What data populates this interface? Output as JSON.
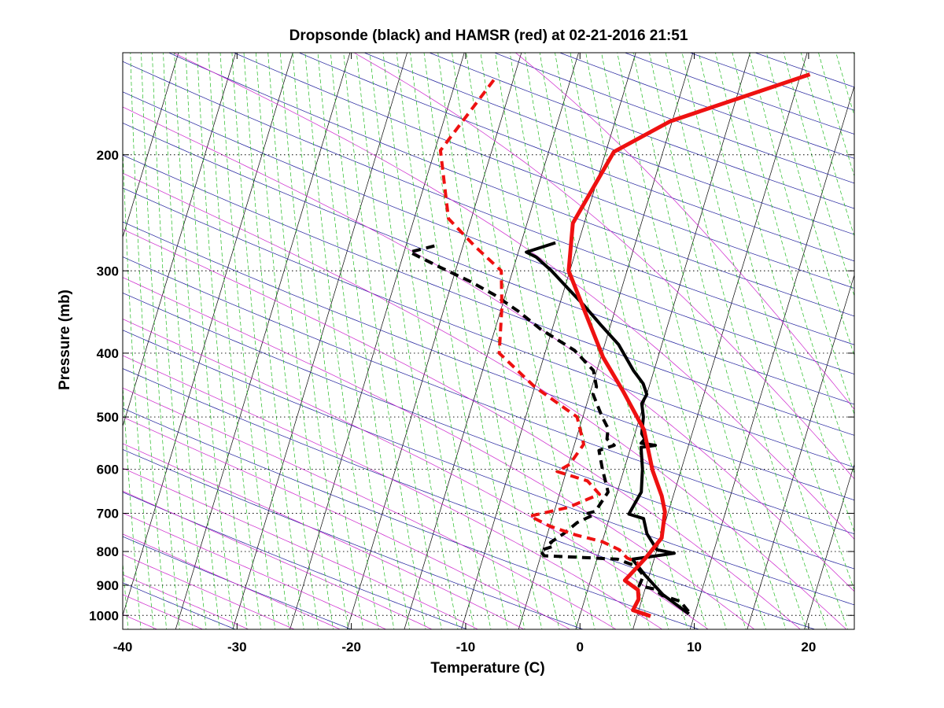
{
  "chart_data": {
    "type": "line",
    "subtype": "skew-t log-p diagram",
    "title": "Dropsonde (black) and HAMSR (red) at 02-21-2016 21:51",
    "xlabel": "Temperature (C)",
    "ylabel": "Pressure (mb)",
    "xlim": [
      -40,
      24
    ],
    "ylim": [
      1050,
      140
    ],
    "yscale": "log",
    "x_ticks": [
      "-40",
      "-30",
      "-20",
      "-10",
      "0",
      "10",
      "20"
    ],
    "y_ticks": [
      "200",
      "300",
      "400",
      "500",
      "600",
      "700",
      "800",
      "900",
      "1000"
    ],
    "grid": "dotted horizontal isobars",
    "background_lines": {
      "isotherms": "#000000",
      "dry_adiabats": "#1a1a9a",
      "moist_adiabats": "#cc22cc",
      "mixing_ratio": "#22bb22"
    },
    "colors": {
      "dropsonde": "#000000",
      "hamsr": "#ee1111"
    },
    "series": [
      {
        "color": "#000000",
        "dash": "solid",
        "width": 4,
        "x": [
          -12.0,
          -14.3,
          -13.3,
          -11.6,
          -9.8,
          -7.9,
          -5.9,
          -3.8,
          -1.8,
          -0.6,
          0.0,
          -0.2,
          0.3,
          0.6,
          1.0,
          0.8,
          2.1,
          0.9,
          1.6,
          2.1,
          1.6,
          3.0,
          3.7,
          5.0,
          6.6,
          3.1,
          4.6,
          6.7,
          9.5
        ],
        "p": [
          272,
          281,
          286,
          300,
          318,
          338,
          362,
          388,
          425,
          445,
          462,
          477,
          500,
          530,
          540,
          548,
          552,
          556,
          600,
          650,
          702,
          713,
          752,
          795,
          805,
          822,
          868,
          930,
          995
        ]
      },
      {
        "color": "#000000",
        "dash": "dashed",
        "width": 4,
        "x": [
          -22.5,
          -24.5,
          -21.5,
          -18.5,
          -16.0,
          -13.5,
          -11.0,
          -7.5,
          -5.3,
          -4.6,
          -4.7,
          -3.3,
          -2.5,
          -2.3,
          -1.5,
          -2.7,
          -1.9,
          -0.8,
          -1.4,
          -2.0,
          -1.5,
          -2.7,
          -3.6,
          -4.5,
          -4.1,
          -5.2,
          -4.7,
          -1.2,
          1.8,
          3.6,
          4.5,
          4.4,
          5.8,
          6.7,
          8.4,
          9.5
        ],
        "p": [
          275,
          281,
          296,
          311,
          326,
          345,
          368,
          396,
          425,
          450,
          462,
          500,
          520,
          540,
          552,
          562,
          600,
          650,
          695,
          700,
          704,
          723,
          752,
          775,
          785,
          797,
          812,
          817,
          822,
          842,
          870,
          902,
          912,
          933,
          952,
          990
        ]
      },
      {
        "color": "#ee1111",
        "dash": "solid",
        "width": 5,
        "x": [
          5.8,
          -5.2,
          -9.3,
          -11.0,
          -10.1,
          -7.3,
          -4.8,
          -2.2,
          0.7,
          2.5,
          4.0,
          4.7,
          5.1,
          4.2,
          3.0,
          4.4,
          4.7,
          4.5,
          6.2
        ],
        "p": [
          151,
          178,
          198,
          254,
          300,
          352,
          406,
          456,
          523,
          602,
          659,
          697,
          763,
          820,
          885,
          915,
          945,
          982,
          1003
        ]
      },
      {
        "color": "#ee1111",
        "dash": "dashed",
        "width": 4,
        "x": [
          -21.7,
          -24.5,
          -22.0,
          -19.0,
          -16.0,
          -15.0,
          -14.0,
          -10.0,
          -5.5,
          -4.2,
          -4.9,
          -5.8,
          -2.9,
          -1.5,
          -3.9,
          -7.0,
          -5.0,
          -2.5,
          0.0,
          1.7,
          2.6,
          3.7
        ],
        "p": [
          154,
          197,
          250,
          275,
          300,
          340,
          400,
          450,
          500,
          550,
          590,
          605,
          625,
          655,
          686,
          707,
          732,
          755,
          773,
          795,
          818,
          833
        ]
      }
    ]
  }
}
